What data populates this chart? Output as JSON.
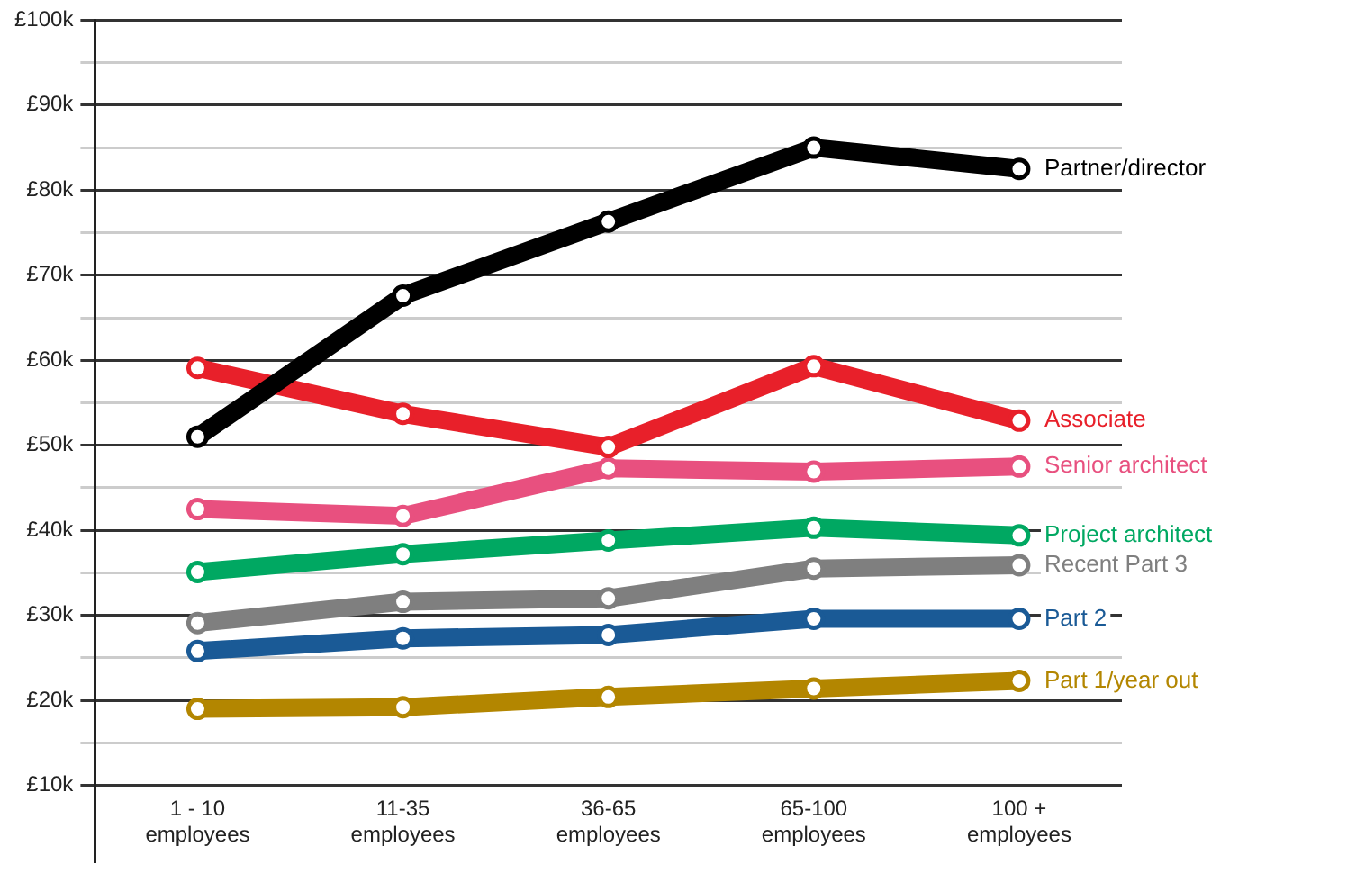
{
  "chart_data": {
    "type": "line",
    "categories": [
      "1 - 10\nemployees",
      "11-35\nemployees",
      "36-65\nemployees",
      "65-100\nemployees",
      "100 +\nemployees"
    ],
    "series": [
      {
        "name": "Partner/director",
        "color": "#000000",
        "values": [
          51,
          67.6,
          76.3,
          85,
          82.5
        ]
      },
      {
        "name": "Associate",
        "color": "#e8202a",
        "values": [
          59.1,
          53.7,
          49.8,
          59.3,
          52.9
        ]
      },
      {
        "name": "Senior architect",
        "color": "#e8507f",
        "values": [
          42.5,
          41.7,
          47.3,
          46.9,
          47.5
        ]
      },
      {
        "name": "Project architect",
        "color": "#00a862",
        "values": [
          35.1,
          37.2,
          38.8,
          40.3,
          39.4
        ]
      },
      {
        "name": "Recent Part 3",
        "color": "#7f7f7f",
        "values": [
          29.1,
          31.6,
          32,
          35.5,
          35.9
        ]
      },
      {
        "name": "Part 2",
        "color": "#1a5a96",
        "values": [
          25.8,
          27.3,
          27.7,
          29.6,
          29.6
        ]
      },
      {
        "name": "Part 1/year out",
        "color": "#b38600",
        "values": [
          19,
          19.2,
          20.4,
          21.4,
          22.3
        ]
      }
    ],
    "ylim": [
      1,
      100
    ],
    "yticks": [
      {
        "value": 10,
        "label": "£10k"
      },
      {
        "value": 15,
        "label": null
      },
      {
        "value": 20,
        "label": "£20k"
      },
      {
        "value": 25,
        "label": null
      },
      {
        "value": 30,
        "label": "£30k"
      },
      {
        "value": 35,
        "label": null
      },
      {
        "value": 40,
        "label": "£40k"
      },
      {
        "value": 45,
        "label": null
      },
      {
        "value": 50,
        "label": "£50k"
      },
      {
        "value": 55,
        "label": null
      },
      {
        "value": 60,
        "label": "£60k"
      },
      {
        "value": 65,
        "label": null
      },
      {
        "value": 70,
        "label": "£70k"
      },
      {
        "value": 75,
        "label": null
      },
      {
        "value": 80,
        "label": "£80k"
      },
      {
        "value": 85,
        "label": null
      },
      {
        "value": 90,
        "label": "£90k"
      },
      {
        "value": 95,
        "label": null
      },
      {
        "value": 100,
        "label": "£100k"
      }
    ],
    "grid": "y",
    "legend": false,
    "marker": "circle",
    "line_style": "solid"
  }
}
